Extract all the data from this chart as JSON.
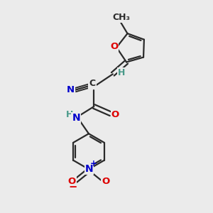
{
  "bg_color": "#ebebeb",
  "bond_color": "#2a2a2a",
  "bond_width": 1.6,
  "atom_colors": {
    "O": "#dd0000",
    "N": "#0000cc",
    "C": "#2a2a2a",
    "H": "#4a9a8a"
  },
  "font_size_atom": 9,
  "font_size_small": 7.5
}
